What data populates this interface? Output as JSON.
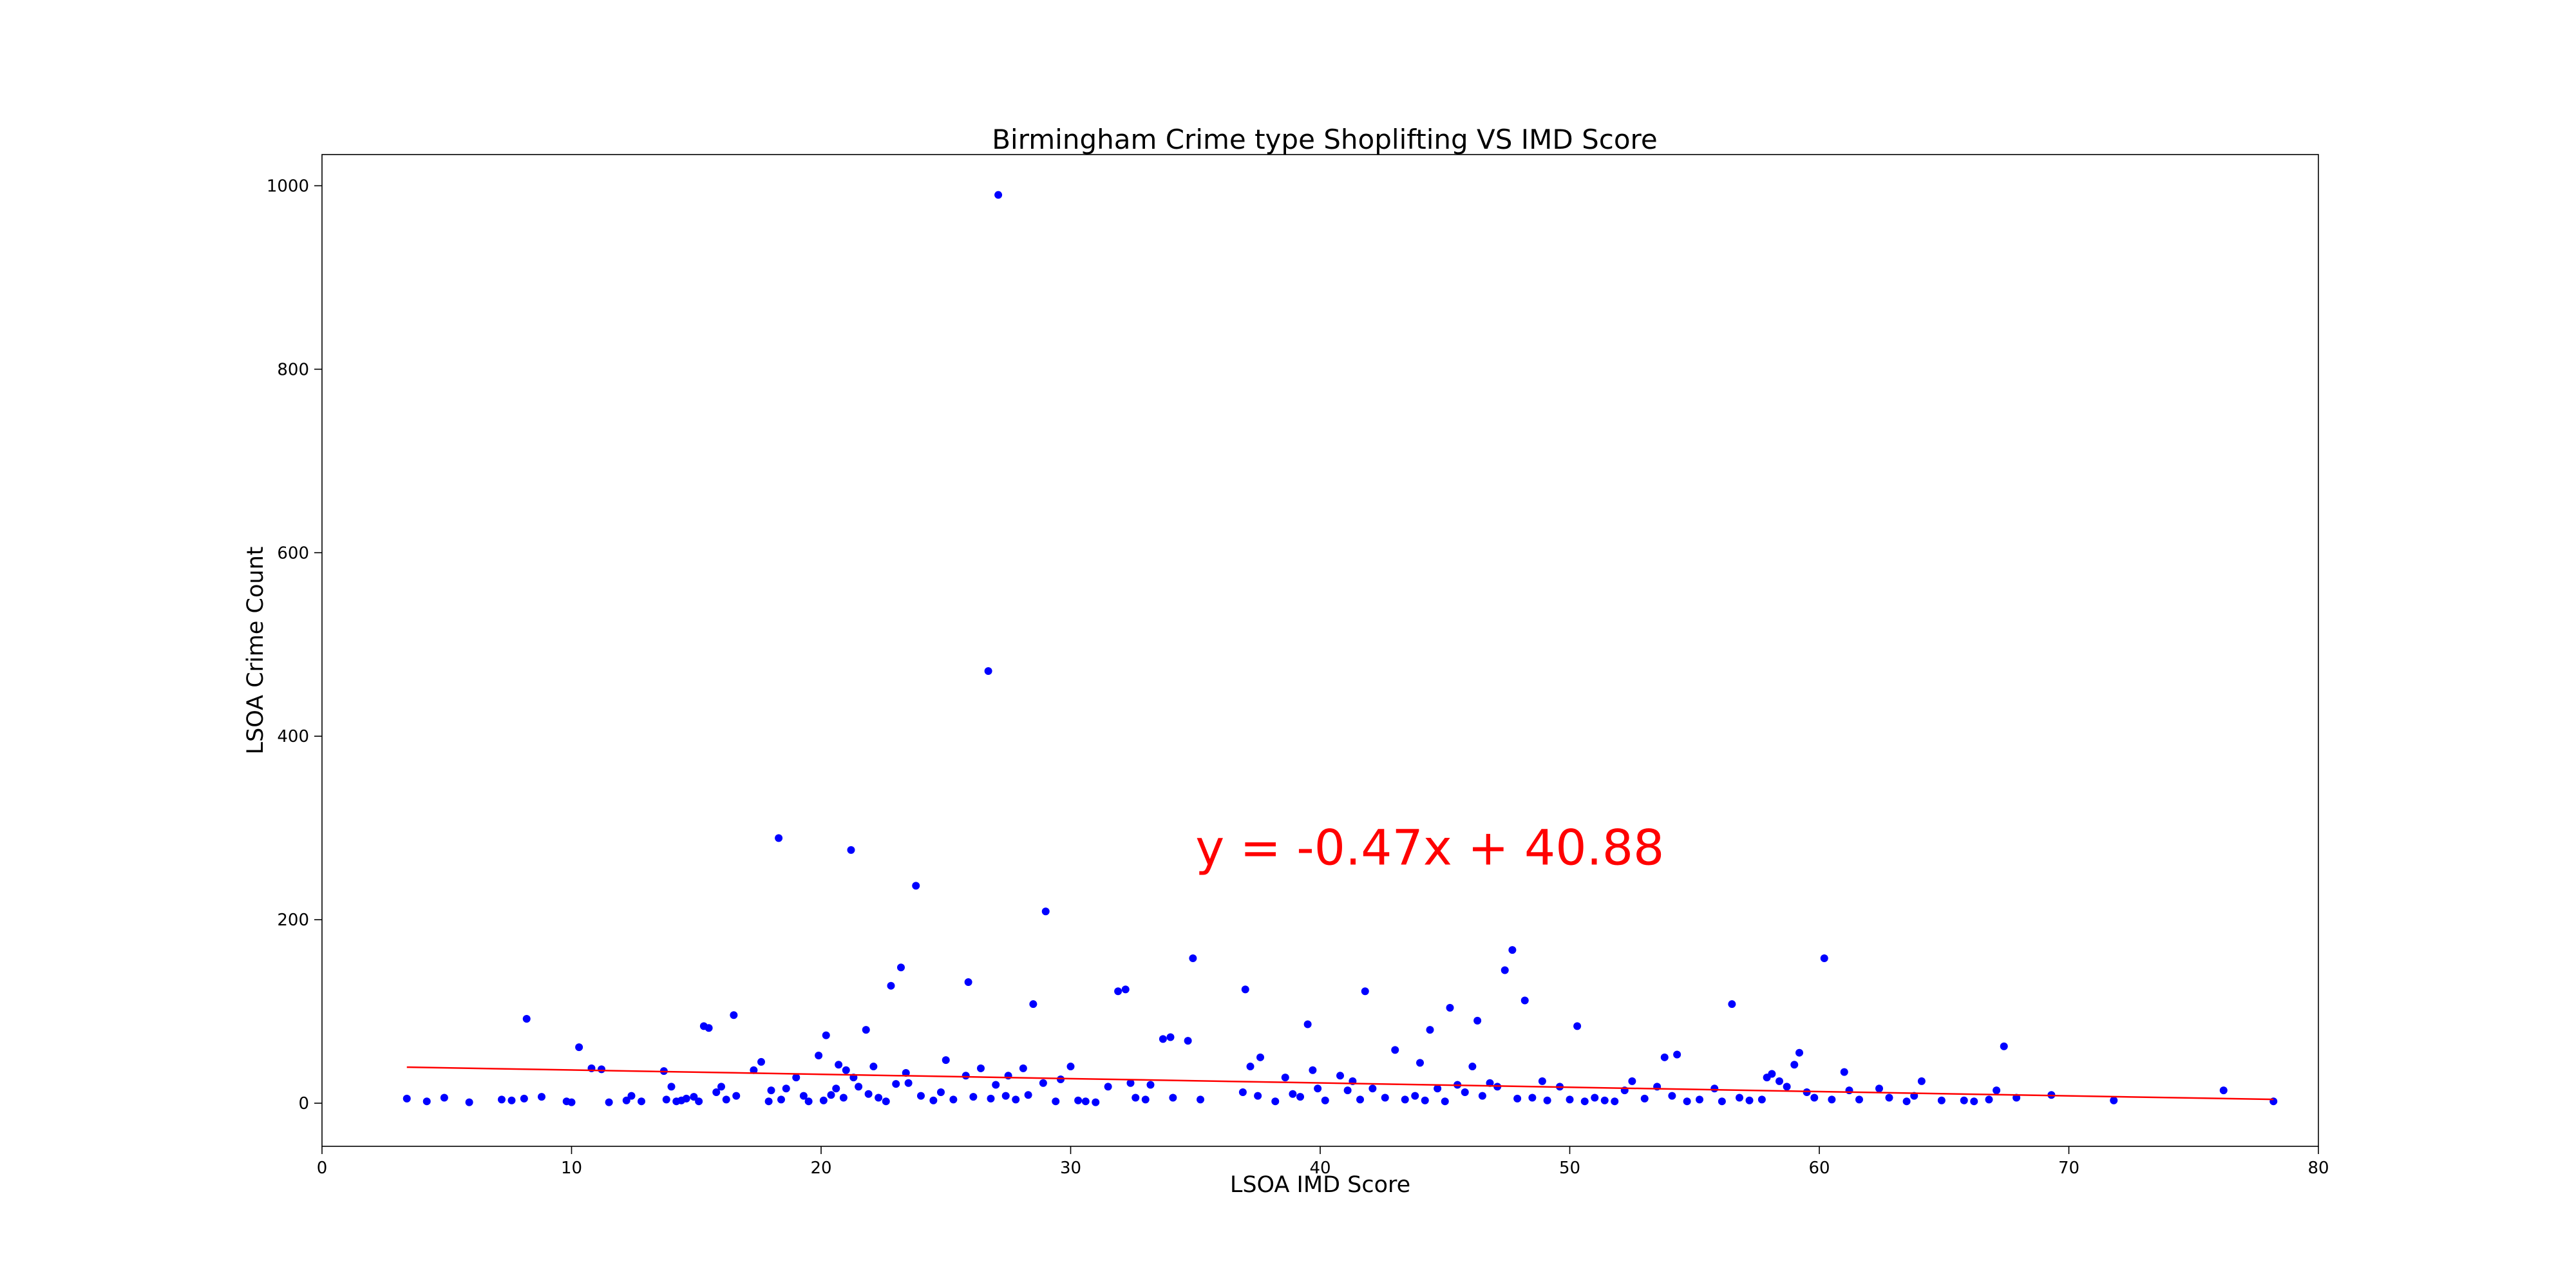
{
  "chart_data": {
    "type": "scatter",
    "title": "Birmingham Crime type Shoplifting VS IMD Score",
    "xlabel": "LSOA IMD Score",
    "ylabel": "LSOA Crime Count",
    "xlim": [
      0,
      80
    ],
    "ylim": [
      -47,
      1034
    ],
    "x_ticks": [
      0,
      10,
      20,
      30,
      40,
      50,
      60,
      70,
      80
    ],
    "y_ticks": [
      0,
      200,
      400,
      600,
      800,
      1000
    ],
    "grid": false,
    "legend": "none",
    "point_color": "#0000ff",
    "regression": {
      "equation": "y = -0.47x + 40.88",
      "slope": -0.47,
      "intercept": 40.88,
      "x_range": [
        3.4,
        78.2
      ],
      "color": "#ff0000",
      "label_position": [
        35,
        260
      ]
    },
    "points": [
      [
        3.4,
        5
      ],
      [
        4.2,
        2
      ],
      [
        4.9,
        6
      ],
      [
        5.9,
        1
      ],
      [
        7.2,
        4
      ],
      [
        7.6,
        3
      ],
      [
        8.1,
        5
      ],
      [
        8.2,
        92
      ],
      [
        8.8,
        7
      ],
      [
        9.8,
        2
      ],
      [
        10.0,
        1
      ],
      [
        10.3,
        61
      ],
      [
        10.8,
        38
      ],
      [
        11.2,
        37
      ],
      [
        11.5,
        1
      ],
      [
        12.2,
        3
      ],
      [
        12.4,
        8
      ],
      [
        12.8,
        2
      ],
      [
        13.7,
        35
      ],
      [
        13.8,
        4
      ],
      [
        14.0,
        18
      ],
      [
        14.2,
        2
      ],
      [
        14.4,
        3
      ],
      [
        14.6,
        5
      ],
      [
        14.9,
        7
      ],
      [
        15.1,
        2
      ],
      [
        15.3,
        84
      ],
      [
        15.5,
        82
      ],
      [
        15.8,
        12
      ],
      [
        16.0,
        18
      ],
      [
        16.2,
        4
      ],
      [
        16.5,
        96
      ],
      [
        16.6,
        8
      ],
      [
        17.3,
        36
      ],
      [
        17.6,
        45
      ],
      [
        17.9,
        2
      ],
      [
        18.0,
        14
      ],
      [
        18.3,
        289
      ],
      [
        18.4,
        4
      ],
      [
        18.6,
        16
      ],
      [
        19.0,
        28
      ],
      [
        19.3,
        8
      ],
      [
        19.5,
        2
      ],
      [
        19.9,
        52
      ],
      [
        20.1,
        3
      ],
      [
        20.2,
        74
      ],
      [
        20.4,
        9
      ],
      [
        20.6,
        16
      ],
      [
        20.7,
        42
      ],
      [
        20.9,
        6
      ],
      [
        21.0,
        36
      ],
      [
        21.2,
        276
      ],
      [
        21.3,
        28
      ],
      [
        21.5,
        18
      ],
      [
        21.8,
        80
      ],
      [
        21.9,
        10
      ],
      [
        22.1,
        40
      ],
      [
        22.3,
        6
      ],
      [
        22.6,
        2
      ],
      [
        22.8,
        128
      ],
      [
        23.0,
        21
      ],
      [
        23.2,
        148
      ],
      [
        23.4,
        33
      ],
      [
        23.5,
        22
      ],
      [
        23.8,
        237
      ],
      [
        24.0,
        8
      ],
      [
        24.5,
        3
      ],
      [
        24.8,
        12
      ],
      [
        25.0,
        47
      ],
      [
        25.3,
        4
      ],
      [
        25.8,
        30
      ],
      [
        25.9,
        132
      ],
      [
        26.1,
        7
      ],
      [
        26.4,
        38
      ],
      [
        26.7,
        471
      ],
      [
        26.8,
        5
      ],
      [
        27.0,
        20
      ],
      [
        27.1,
        990
      ],
      [
        27.4,
        8
      ],
      [
        27.5,
        30
      ],
      [
        27.8,
        4
      ],
      [
        28.1,
        38
      ],
      [
        28.3,
        9
      ],
      [
        28.5,
        108
      ],
      [
        28.9,
        22
      ],
      [
        29.0,
        209
      ],
      [
        29.4,
        2
      ],
      [
        29.6,
        26
      ],
      [
        30.0,
        40
      ],
      [
        30.3,
        3
      ],
      [
        30.6,
        2
      ],
      [
        31.0,
        1
      ],
      [
        31.5,
        18
      ],
      [
        31.9,
        122
      ],
      [
        32.2,
        124
      ],
      [
        32.4,
        22
      ],
      [
        32.6,
        6
      ],
      [
        33.0,
        4
      ],
      [
        33.2,
        20
      ],
      [
        33.7,
        70
      ],
      [
        34.0,
        72
      ],
      [
        34.1,
        6
      ],
      [
        34.7,
        68
      ],
      [
        34.9,
        158
      ],
      [
        35.2,
        4
      ],
      [
        36.9,
        12
      ],
      [
        37.0,
        124
      ],
      [
        37.2,
        40
      ],
      [
        37.5,
        8
      ],
      [
        37.6,
        50
      ],
      [
        38.2,
        2
      ],
      [
        38.6,
        28
      ],
      [
        38.9,
        10
      ],
      [
        39.2,
        7
      ],
      [
        39.5,
        86
      ],
      [
        39.7,
        36
      ],
      [
        39.9,
        16
      ],
      [
        40.2,
        3
      ],
      [
        40.8,
        30
      ],
      [
        41.1,
        14
      ],
      [
        41.3,
        24
      ],
      [
        41.6,
        4
      ],
      [
        41.8,
        122
      ],
      [
        42.1,
        16
      ],
      [
        42.6,
        6
      ],
      [
        43.0,
        58
      ],
      [
        43.4,
        4
      ],
      [
        43.8,
        8
      ],
      [
        44.0,
        44
      ],
      [
        44.2,
        3
      ],
      [
        44.4,
        80
      ],
      [
        44.7,
        16
      ],
      [
        45.0,
        2
      ],
      [
        45.2,
        104
      ],
      [
        45.5,
        20
      ],
      [
        45.8,
        12
      ],
      [
        46.1,
        40
      ],
      [
        46.3,
        90
      ],
      [
        46.5,
        8
      ],
      [
        46.8,
        22
      ],
      [
        47.1,
        18
      ],
      [
        47.4,
        145
      ],
      [
        47.7,
        167
      ],
      [
        47.9,
        5
      ],
      [
        48.2,
        112
      ],
      [
        48.5,
        6
      ],
      [
        48.9,
        24
      ],
      [
        49.1,
        3
      ],
      [
        49.6,
        18
      ],
      [
        50.0,
        4
      ],
      [
        50.3,
        84
      ],
      [
        50.6,
        2
      ],
      [
        51.0,
        6
      ],
      [
        51.4,
        3
      ],
      [
        51.8,
        2
      ],
      [
        52.2,
        14
      ],
      [
        52.5,
        24
      ],
      [
        53.0,
        5
      ],
      [
        53.5,
        18
      ],
      [
        53.8,
        50
      ],
      [
        54.1,
        8
      ],
      [
        54.3,
        53
      ],
      [
        54.7,
        2
      ],
      [
        55.2,
        4
      ],
      [
        55.8,
        16
      ],
      [
        56.1,
        2
      ],
      [
        56.5,
        108
      ],
      [
        56.8,
        6
      ],
      [
        57.2,
        3
      ],
      [
        57.7,
        4
      ],
      [
        57.9,
        28
      ],
      [
        58.1,
        32
      ],
      [
        58.4,
        24
      ],
      [
        58.7,
        18
      ],
      [
        59.0,
        42
      ],
      [
        59.2,
        55
      ],
      [
        59.5,
        12
      ],
      [
        59.8,
        6
      ],
      [
        60.2,
        158
      ],
      [
        60.5,
        4
      ],
      [
        61.0,
        34
      ],
      [
        61.2,
        14
      ],
      [
        61.6,
        4
      ],
      [
        62.4,
        16
      ],
      [
        62.8,
        6
      ],
      [
        63.5,
        2
      ],
      [
        63.8,
        8
      ],
      [
        64.1,
        24
      ],
      [
        64.9,
        3
      ],
      [
        65.8,
        3
      ],
      [
        66.2,
        2
      ],
      [
        66.8,
        4
      ],
      [
        67.1,
        14
      ],
      [
        67.4,
        62
      ],
      [
        67.9,
        6
      ],
      [
        69.3,
        9
      ],
      [
        71.8,
        3
      ],
      [
        76.2,
        14
      ],
      [
        78.2,
        2
      ]
    ]
  }
}
